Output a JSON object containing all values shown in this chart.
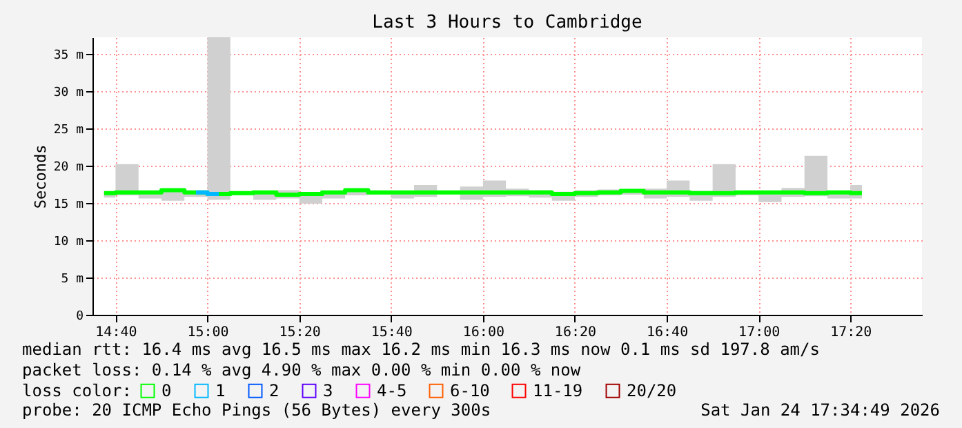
{
  "chart_data": {
    "type": "step",
    "title": "Last 3 Hours to Cambridge",
    "ylabel": "Seconds",
    "legend_title": "loss color:",
    "legend": "bottom left",
    "grid": true,
    "x": [
      14.625,
      14.7083,
      14.7917,
      14.875,
      14.9583,
      15.0417,
      15.125,
      15.2083,
      15.2917,
      15.375,
      15.4583,
      15.5417,
      15.625,
      15.7083,
      15.7917,
      15.875,
      15.9583,
      16.0417,
      16.125,
      16.2083,
      16.2917,
      16.375,
      16.4583,
      16.5417,
      16.625,
      16.7083,
      16.7917,
      16.875,
      16.9583,
      17.0417,
      17.125,
      17.2083,
      17.2917,
      17.375
    ],
    "xlim": [
      14.583,
      17.593
    ],
    "xticks": [
      {
        "value": 14.6667,
        "label": "14:40"
      },
      {
        "value": 15.0,
        "label": "15:00"
      },
      {
        "value": 15.3333,
        "label": "15:20"
      },
      {
        "value": 15.6667,
        "label": "15:40"
      },
      {
        "value": 16.0,
        "label": "16:00"
      },
      {
        "value": 16.3333,
        "label": "16:20"
      },
      {
        "value": 16.6667,
        "label": "16:40"
      },
      {
        "value": 17.0,
        "label": "17:00"
      },
      {
        "value": 17.3333,
        "label": "17:20"
      }
    ],
    "ylim": [
      0,
      37.2
    ],
    "yticks": [
      0,
      {
        "value": 5,
        "label": "5 m"
      },
      {
        "value": 10,
        "label": "10 m"
      },
      {
        "value": 15,
        "label": "15 m"
      },
      {
        "value": 20,
        "label": "20 m"
      },
      {
        "value": 25,
        "label": "25 m"
      },
      {
        "value": 30,
        "label": "30 m"
      },
      {
        "value": 35,
        "label": "35 m"
      }
    ],
    "series": [
      {
        "name": "0",
        "color": "#00ff00",
        "values": [
          16.3,
          16.4,
          16.4,
          16.7,
          16.4,
          16.2,
          16.3,
          16.4,
          16.1,
          16.2,
          16.4,
          16.7,
          16.4,
          16.4,
          16.4,
          16.4,
          16.4,
          16.4,
          16.4,
          16.4,
          16.2,
          16.3,
          16.4,
          16.6,
          16.4,
          16.4,
          16.3,
          16.3,
          16.4,
          16.4,
          16.4,
          16.3,
          16.4,
          16.3
        ],
        "lower": [
          15.7,
          16.0,
          15.6,
          15.3,
          15.8,
          15.4,
          16.0,
          15.4,
          15.6,
          14.9,
          15.6,
          16.0,
          16.1,
          15.6,
          15.8,
          16.2,
          15.4,
          15.8,
          15.9,
          15.7,
          15.3,
          15.8,
          16.0,
          16.1,
          15.6,
          15.8,
          15.3,
          15.8,
          16.0,
          15.1,
          15.8,
          15.9,
          15.6,
          15.6
        ],
        "upper": [
          16.5,
          20.2,
          16.5,
          16.8,
          16.5,
          37.2,
          16.5,
          16.5,
          16.7,
          16.3,
          16.5,
          16.9,
          16.6,
          16.6,
          17.4,
          16.6,
          17.2,
          18.0,
          16.9,
          16.7,
          16.5,
          16.7,
          16.8,
          16.7,
          16.9,
          18.0,
          16.6,
          20.2,
          16.5,
          16.4,
          17.0,
          21.3,
          16.4,
          17.4
        ]
      },
      {
        "name": "1",
        "color": "#00b8ff",
        "values": [
          null,
          null,
          null,
          null,
          16.4,
          16.2,
          null,
          null,
          null,
          null,
          null,
          null,
          null,
          null,
          null,
          null,
          null,
          null,
          null,
          null,
          null,
          null,
          null,
          null,
          null,
          null,
          null,
          null,
          null,
          null,
          null,
          null,
          null,
          null
        ]
      },
      {
        "name": "2",
        "color": "#0059ff",
        "values": [
          null,
          null,
          null,
          null,
          null,
          null,
          null,
          null,
          null,
          null,
          null,
          null,
          null,
          null,
          null,
          null,
          null,
          null,
          null,
          null,
          null,
          null,
          null,
          null,
          null,
          null,
          null,
          null,
          null,
          null,
          null,
          null,
          null,
          null
        ]
      },
      {
        "name": "3",
        "color": "#5e00ff",
        "values": [
          null,
          null,
          null,
          null,
          null,
          null,
          null,
          null,
          null,
          null,
          null,
          null,
          null,
          null,
          null,
          null,
          null,
          null,
          null,
          null,
          null,
          null,
          null,
          null,
          null,
          null,
          null,
          null,
          null,
          null,
          null,
          null,
          null,
          null
        ]
      },
      {
        "name": "4-5",
        "color": "#ff00ff",
        "values": [
          null,
          null,
          null,
          null,
          null,
          null,
          null,
          null,
          null,
          null,
          null,
          null,
          null,
          null,
          null,
          null,
          null,
          null,
          null,
          null,
          null,
          null,
          null,
          null,
          null,
          null,
          null,
          null,
          null,
          null,
          null,
          null,
          null,
          null
        ]
      },
      {
        "name": "6-10",
        "color": "#ff5e00",
        "values": [
          null,
          null,
          null,
          null,
          null,
          null,
          null,
          null,
          null,
          null,
          null,
          null,
          null,
          null,
          null,
          null,
          null,
          null,
          null,
          null,
          null,
          null,
          null,
          null,
          null,
          null,
          null,
          null,
          null,
          null,
          null,
          null,
          null,
          null
        ]
      },
      {
        "name": "11-19",
        "color": "#ff0000",
        "values": [
          null,
          null,
          null,
          null,
          null,
          null,
          null,
          null,
          null,
          null,
          null,
          null,
          null,
          null,
          null,
          null,
          null,
          null,
          null,
          null,
          null,
          null,
          null,
          null,
          null,
          null,
          null,
          null,
          null,
          null,
          null,
          null,
          null,
          null
        ]
      },
      {
        "name": "20/20",
        "color": "#a10000",
        "values": [
          null,
          null,
          null,
          null,
          null,
          null,
          null,
          null,
          null,
          null,
          null,
          null,
          null,
          null,
          null,
          null,
          null,
          null,
          null,
          null,
          null,
          null,
          null,
          null,
          null,
          null,
          null,
          null,
          null,
          null,
          null,
          null,
          null,
          null
        ]
      }
    ],
    "annotations": [
      "median rtt:  16.4 ms avg  16.5 ms max  16.2 ms min  16.3 ms now  0.1 ms sd  197.8   am/s",
      "packet loss: 0.14 % avg  4.90 % max  0.00 % min  0.00 % now",
      "probe:       20 ICMP Echo Pings (56 Bytes) every 300s",
      "Sat Jan 24 17:34:49 2026"
    ]
  }
}
